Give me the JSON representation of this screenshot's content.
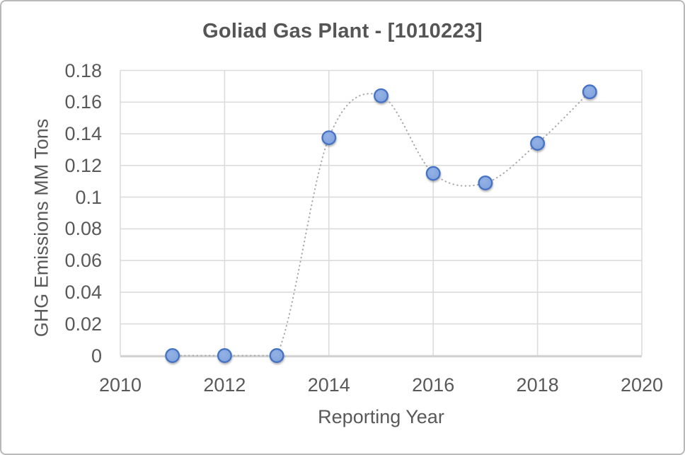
{
  "window": {
    "background_color": "#ffffff",
    "frame_border_color": "#b9b9b9"
  },
  "chart_data": {
    "type": "scatter",
    "title": "Goliad Gas Plant - [1010223]",
    "xlabel": "Reporting Year",
    "ylabel": "GHG Emissions MM Tons",
    "x": [
      2011,
      2012,
      2013,
      2014,
      2015,
      2016,
      2017,
      2018,
      2019
    ],
    "y": [
      0,
      0,
      0,
      0.1375,
      0.164,
      0.115,
      0.109,
      0.134,
      0.1665
    ],
    "xlim": [
      2010,
      2020
    ],
    "ylim": [
      0,
      0.18
    ],
    "x_ticks": [
      2010,
      2012,
      2014,
      2016,
      2018,
      2020
    ],
    "x_tick_labels": [
      "2010",
      "2012",
      "2014",
      "2016",
      "2018",
      "2020"
    ],
    "y_ticks": [
      0,
      0.02,
      0.04,
      0.06,
      0.08,
      0.1,
      0.12,
      0.14,
      0.16,
      0.18
    ],
    "y_tick_labels": [
      "0",
      "0.02",
      "0.04",
      "0.06",
      "0.08",
      "0.1",
      "0.12",
      "0.14",
      "0.16",
      "0.18"
    ],
    "grid": true,
    "legend": "none",
    "line_style": "dotted-smooth",
    "line_color": "#a8a8a8",
    "gridline_color": "#dcdcdc",
    "axis_line_color": "#d2d2d2",
    "text_color": "#595959",
    "title_color": "#555555",
    "marker": {
      "shape": "circle",
      "fill": "#7fa0da",
      "fill_light": "#93b2e6",
      "stroke": "#4472c4"
    }
  }
}
